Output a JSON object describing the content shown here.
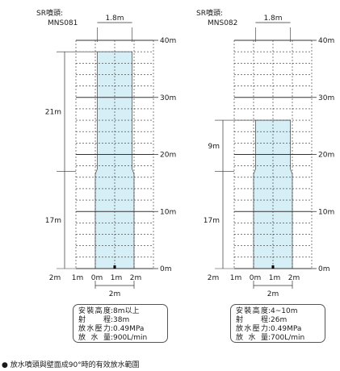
{
  "panels": [
    {
      "header": {
        "line1": "SR噴頭:",
        "line2": "MNS081"
      },
      "width_label": "1.8m",
      "y_ticks": [
        "40m",
        "30m",
        "20m",
        "10m",
        "0m"
      ],
      "x_ticks": [
        "2m",
        "1m",
        "0m",
        "1m",
        "2m"
      ],
      "bottom_width_label": "2m",
      "upper_range_label": "21m",
      "lower_range_label": "17m",
      "coverage_top_m": 38,
      "step_height_m": 17,
      "specs": [
        {
          "key": "安裝高度",
          "value": ":8m以上"
        },
        {
          "key": "射　　程",
          "value": ":38m"
        },
        {
          "key": "放水壓力",
          "value": ":0.49MPa"
        },
        {
          "key": "放 水 量",
          "value": ":900L/min"
        }
      ]
    },
    {
      "header": {
        "line1": "SR噴頭:",
        "line2": "MNS082"
      },
      "width_label": "1.8m",
      "y_ticks": [
        "40m",
        "30m",
        "20m",
        "10m",
        "0m"
      ],
      "x_ticks": [
        "2m",
        "1m",
        "0m",
        "1m",
        "2m"
      ],
      "bottom_width_label": "2m",
      "upper_range_label": "9m",
      "lower_range_label": "17m",
      "coverage_top_m": 26,
      "step_height_m": 17,
      "specs": [
        {
          "key": "安裝高度",
          "value": ":4~10m"
        },
        {
          "key": "射　　程",
          "value": ":26m"
        },
        {
          "key": "放水壓力",
          "value": ":0.49MPa"
        },
        {
          "key": "放 水 量",
          "value": ":700L/min"
        }
      ]
    }
  ],
  "footnote": "● 放水噴頭與壁面成90°時的有效放水範圍",
  "colors": {
    "coverage": "#d6eef5",
    "coverage_edge": "#555555",
    "grid": "#333333"
  }
}
